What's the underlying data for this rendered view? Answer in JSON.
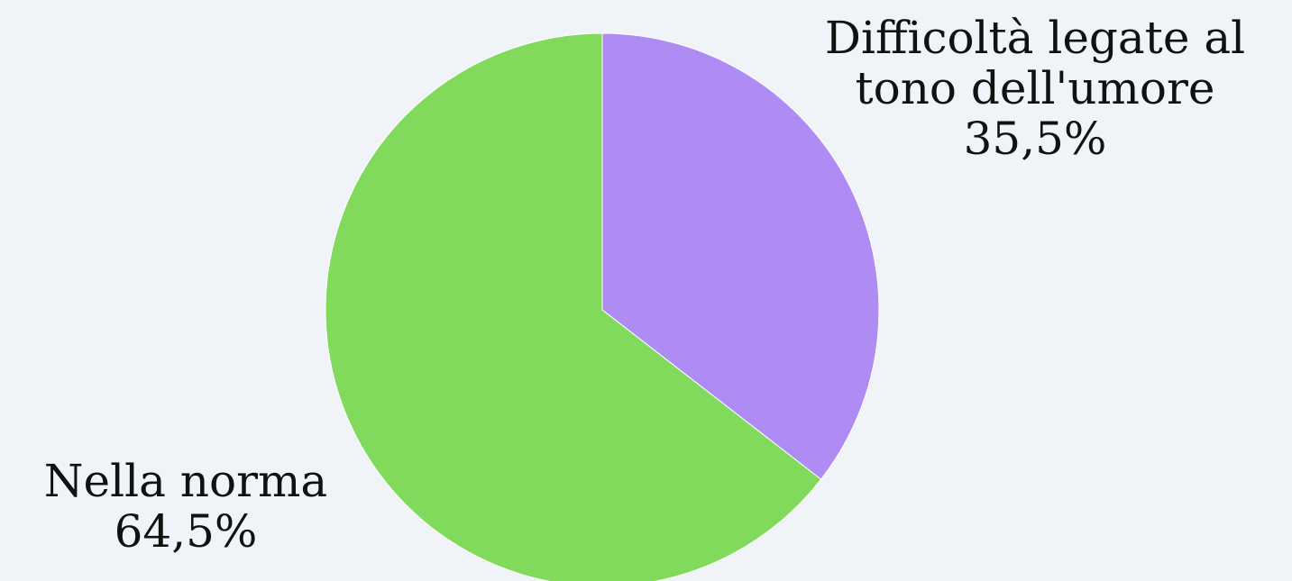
{
  "chart_data": {
    "type": "pie",
    "title": "",
    "legend": "none",
    "slices": [
      {
        "label_lines": [
          "Difficoltà legate al",
          "tono dell'umore"
        ],
        "value_label": "35,5%",
        "value": 35.5,
        "color": "#ae8cf4"
      },
      {
        "label_lines": [
          "Nella norma"
        ],
        "value_label": "64,5%",
        "value": 64.5,
        "color": "#81da5b"
      }
    ]
  },
  "colors": {
    "background": "#f0f4f9",
    "text": "#111111"
  }
}
